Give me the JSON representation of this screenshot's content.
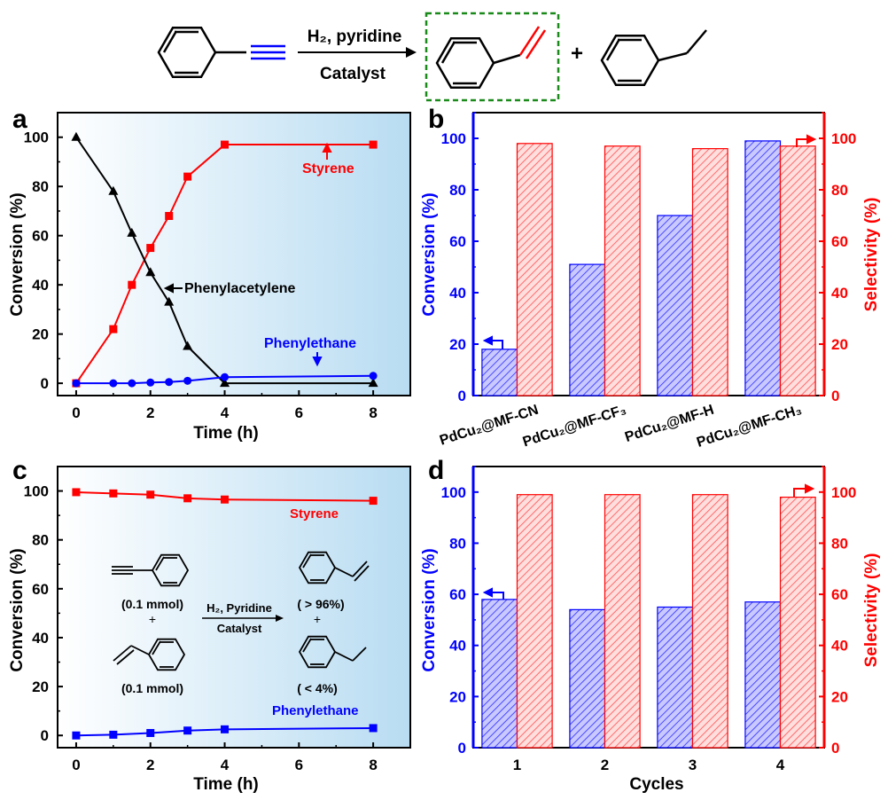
{
  "scheme": {
    "reagent_label": "H₂, pyridine",
    "catalyst_label": "Catalyst",
    "plus": "+"
  },
  "colors": {
    "black": "#000000",
    "red": "#ff0000",
    "blue": "#0000ff",
    "green_box": "#1a8a1a",
    "gradient_light": "#ffffff",
    "gradient_dark": "#b8dcf2"
  },
  "panels": {
    "a": {
      "letter": "a"
    },
    "b": {
      "letter": "b"
    },
    "c": {
      "letter": "c"
    },
    "d": {
      "letter": "d"
    }
  },
  "inset": {
    "reactant1_amount": "(0.1 mmol)",
    "reactant2_amount": "(0.1 mmol)",
    "plus": "+",
    "reagent_label": "H₂, Pyridine",
    "catalyst_label": "Catalyst",
    "product1_yield": "( > 96%)",
    "product2_yield": "( < 4%)"
  },
  "chart_data": [
    {
      "panel": "a",
      "type": "line",
      "xlabel": "Time (h)",
      "ylabel": "Conversion (%)",
      "xlim": [
        -0.5,
        9
      ],
      "ylim": [
        -5,
        110
      ],
      "xticks": [
        0,
        2,
        4,
        6,
        8
      ],
      "yticks": [
        0,
        20,
        40,
        60,
        80,
        100
      ],
      "series": [
        {
          "name": "Styrene",
          "color": "#ff0000",
          "marker": "square",
          "x": [
            0,
            1,
            1.5,
            2,
            2.5,
            3,
            4,
            8
          ],
          "y": [
            0,
            22,
            40,
            55,
            68,
            84,
            97,
            97
          ]
        },
        {
          "name": "Phenylacetylene",
          "color": "#000000",
          "marker": "triangle",
          "x": [
            0,
            1,
            1.5,
            2,
            2.5,
            3,
            4,
            8
          ],
          "y": [
            100,
            78,
            61,
            45,
            33,
            15,
            0,
            0
          ]
        },
        {
          "name": "Phenylethane",
          "color": "#0000ff",
          "marker": "circle",
          "x": [
            0,
            1,
            1.5,
            2,
            2.5,
            3,
            4,
            8
          ],
          "y": [
            0,
            0,
            0,
            0.3,
            0.5,
            1,
            2.5,
            3
          ]
        }
      ]
    },
    {
      "panel": "b",
      "type": "bar",
      "categories": [
        "PdCu₂@MF-CN",
        "PdCu₂@MF-CF₃",
        "PdCu₂@MF-H",
        "PdCu₂@MF-CH₃"
      ],
      "ylabel_left": "Conversion (%)",
      "ylabel_right": "Selectivity (%)",
      "ylim": [
        0,
        110
      ],
      "yticks": [
        0,
        20,
        40,
        60,
        80,
        100
      ],
      "series": [
        {
          "axis": "left",
          "color": "#0000ff",
          "values": [
            18,
            51,
            70,
            99
          ]
        },
        {
          "axis": "right",
          "color": "#ff0000",
          "values": [
            98,
            97,
            96,
            97
          ]
        }
      ]
    },
    {
      "panel": "c",
      "type": "line",
      "xlabel": "Time (h)",
      "ylabel": "Conversion (%)",
      "xlim": [
        -0.5,
        9
      ],
      "ylim": [
        -5,
        110
      ],
      "xticks": [
        0,
        2,
        4,
        6,
        8
      ],
      "yticks": [
        0,
        20,
        40,
        60,
        80,
        100
      ],
      "series": [
        {
          "name": "Styrene",
          "color": "#ff0000",
          "marker": "square",
          "x": [
            0,
            1,
            2,
            3,
            4,
            8
          ],
          "y": [
            99.5,
            99,
            98.5,
            97,
            96.5,
            96
          ]
        },
        {
          "name": "Phenylethane",
          "color": "#0000ff",
          "marker": "square",
          "x": [
            0,
            1,
            2,
            3,
            4,
            8
          ],
          "y": [
            0,
            0.3,
            1,
            2,
            2.5,
            3
          ]
        }
      ]
    },
    {
      "panel": "d",
      "type": "bar",
      "categories": [
        "1",
        "2",
        "3",
        "4"
      ],
      "xlabel": "Cycles",
      "ylabel_left": "Conversion (%)",
      "ylabel_right": "Selectivity (%)",
      "ylim": [
        0,
        110
      ],
      "yticks": [
        0,
        20,
        40,
        60,
        80,
        100
      ],
      "series": [
        {
          "axis": "left",
          "color": "#0000ff",
          "values": [
            58,
            54,
            55,
            57
          ]
        },
        {
          "axis": "right",
          "color": "#ff0000",
          "values": [
            99,
            99,
            99,
            98
          ]
        }
      ]
    }
  ]
}
